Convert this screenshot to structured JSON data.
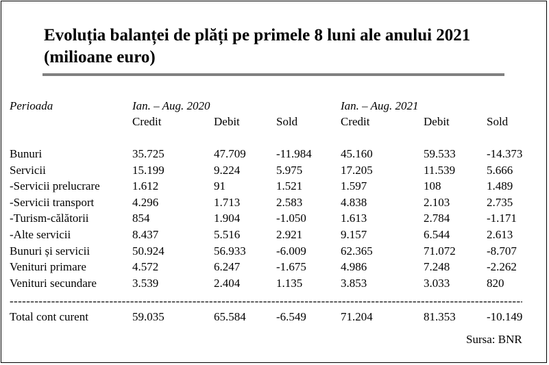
{
  "title_line1": "Evoluția balanței de plăți pe primele 8 luni ale anului 2021",
  "title_line2": "(milioane euro)",
  "header": {
    "period_label": "Perioada",
    "period_2020": "Ian. – Aug. 2020",
    "period_2021": "Ian. – Aug. 2021",
    "columns": [
      "Credit",
      "Debit",
      "Sold",
      "Credit",
      "Debit",
      "Sold"
    ]
  },
  "rows": [
    {
      "label": "Bunuri",
      "values": [
        "35.725",
        "47.709",
        "-11.984",
        "45.160",
        "59.533",
        "-14.373"
      ]
    },
    {
      "label": "Servicii",
      "values": [
        "15.199",
        "9.224",
        "5.975",
        "17.205",
        "11.539",
        "5.666"
      ]
    },
    {
      "label": "-Servicii prelucrare",
      "values": [
        "1.612",
        "91",
        "1.521",
        "1.597",
        "108",
        "1.489"
      ]
    },
    {
      "label": "-Servicii transport",
      "values": [
        "4.296",
        "1.713",
        "2.583",
        "4.838",
        "2.103",
        "2.735"
      ]
    },
    {
      "label": "-Turism-călătorii",
      "values": [
        "854",
        "1.904",
        "-1.050",
        "1.613",
        "2.784",
        "-1.171"
      ]
    },
    {
      "label": "-Alte servicii",
      "values": [
        "8.437",
        "5.516",
        "2.921",
        "9.157",
        "6.544",
        "2.613"
      ]
    },
    {
      "label": "Bunuri și servicii",
      "values": [
        "50.924",
        "56.933",
        "-6.009",
        "62.365",
        "71.072",
        "-8.707"
      ]
    },
    {
      "label": "Venituri primare",
      "values": [
        "4.572",
        "6.247",
        "-1.675",
        "4.986",
        "7.248",
        "-2.262"
      ]
    },
    {
      "label": "Venituri secundare",
      "values": [
        "3.539",
        "2.404",
        "1.135",
        "3.853",
        "3.033",
        "820"
      ]
    }
  ],
  "separator": "----------------------------------------------------------------------------------------------------------------------------",
  "total": {
    "label": "Total cont curent",
    "values": [
      "59.035",
      "65.584",
      "-6.549",
      "71.204",
      "81.353",
      "-10.149"
    ]
  },
  "source": "Sursa: BNR"
}
